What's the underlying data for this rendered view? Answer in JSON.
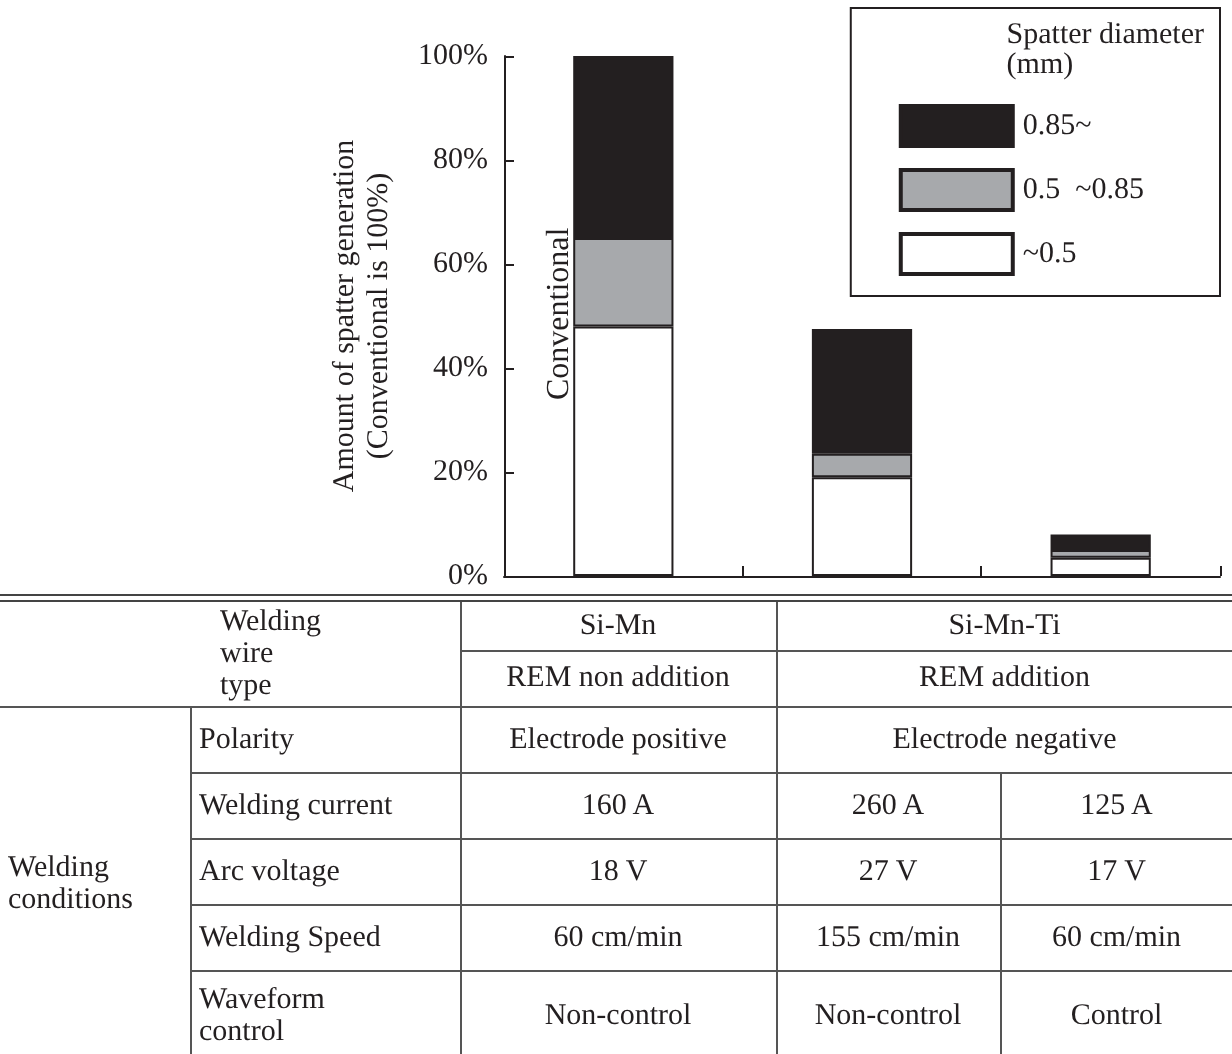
{
  "chart_data": {
    "type": "bar",
    "stacked": true,
    "ylabel": "Amount of spatter generation\n(Conventional is 100%)",
    "legend_title": "Spatter diameter\n(mm)",
    "legend": "top right",
    "grid": false,
    "categories": [
      "Conventional",
      null,
      null
    ],
    "ylim": [
      0,
      100
    ],
    "yticks": [
      {
        "value": 0,
        "label": "0%"
      },
      {
        "value": 20,
        "label": "20%"
      },
      {
        "value": 40,
        "label": "40%"
      },
      {
        "value": 60,
        "label": "60%"
      },
      {
        "value": 80,
        "label": "80%"
      },
      {
        "value": 100,
        "label": "100%"
      }
    ],
    "series": [
      {
        "name": "~0.5",
        "color": "#ffffff",
        "values": [
          48,
          19,
          3.5
        ]
      },
      {
        "name": "0.5  ~0.85",
        "color": "#a7a9ac",
        "values": [
          17,
          4.5,
          1.5
        ]
      },
      {
        "name": "0.85~",
        "color": "#231f20",
        "values": [
          35,
          24,
          3
        ]
      }
    ],
    "annotations": [
      "Welding wire type",
      "Si-Mn",
      "Si-Mn-Ti",
      "REM non addition",
      "REM addition",
      "Welding conditions",
      "Polarity",
      "Electrode positive",
      "Electrode negative",
      "Welding current",
      "160 A",
      "260 A",
      "125 A",
      "Arc voltage",
      "18 V",
      "27 V",
      "17 V",
      "Welding Speed",
      "60 cm/min",
      "155 cm/min",
      "60 cm/min",
      "Waveform control",
      "Non-control",
      "Non-control",
      "Control"
    ]
  }
}
